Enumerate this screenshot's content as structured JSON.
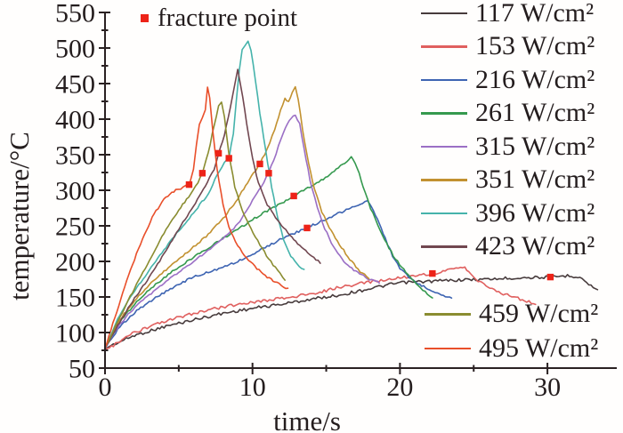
{
  "chart_data": {
    "type": "line",
    "title": "",
    "xlabel": "time/s",
    "ylabel": "temperature/°C",
    "xlim": [
      0,
      34.6
    ],
    "ylim": [
      50,
      550
    ],
    "xticks_major": [
      0,
      10,
      20,
      30
    ],
    "xticks_minor": [
      5,
      15,
      25
    ],
    "yticks_major": [
      50,
      100,
      150,
      200,
      250,
      300,
      350,
      400,
      450,
      500,
      550
    ],
    "yticks_minor": [
      75,
      125,
      175,
      225,
      275,
      325,
      375,
      425,
      475,
      525
    ],
    "grid": false,
    "legend_position": "right",
    "axis_color": "#2a2122",
    "fracture": {
      "label": "fracture point",
      "color": "#ed2318",
      "points": [
        [
          5.7,
          308
        ],
        [
          6.6,
          324
        ],
        [
          7.7,
          352
        ],
        [
          8.4,
          345
        ],
        [
          10.5,
          337
        ],
        [
          11.1,
          324
        ],
        [
          12.8,
          292
        ],
        [
          13.7,
          247
        ],
        [
          22.2,
          183
        ],
        [
          30.2,
          178
        ]
      ]
    },
    "series": [
      {
        "name": "117 W/cm²",
        "color": "#473b3c",
        "noise": 1.7,
        "points": [
          [
            0,
            78
          ],
          [
            2,
            96
          ],
          [
            4,
            108
          ],
          [
            6,
            118
          ],
          [
            8,
            127
          ],
          [
            10,
            134
          ],
          [
            12,
            140
          ],
          [
            14,
            147
          ],
          [
            16,
            153
          ],
          [
            18,
            162
          ],
          [
            20,
            170
          ],
          [
            22,
            172
          ],
          [
            24,
            174
          ],
          [
            26,
            175
          ],
          [
            28,
            177
          ],
          [
            30.2,
            178
          ],
          [
            31.5,
            180
          ],
          [
            32.2,
            178
          ],
          [
            32.8,
            168
          ],
          [
            33.4,
            159
          ]
        ]
      },
      {
        "name": "153 W/cm²",
        "color": "#e0605f",
        "noise": 1.7,
        "points": [
          [
            0,
            75
          ],
          [
            2,
            100
          ],
          [
            4,
            115
          ],
          [
            6,
            127
          ],
          [
            8,
            136
          ],
          [
            10,
            143
          ],
          [
            12,
            148
          ],
          [
            14,
            154
          ],
          [
            16,
            164
          ],
          [
            18,
            171
          ],
          [
            20,
            177
          ],
          [
            22.2,
            183
          ],
          [
            23.5,
            188
          ],
          [
            24.4,
            192
          ],
          [
            24.8,
            183
          ],
          [
            25.3,
            172
          ],
          [
            26.1,
            163
          ],
          [
            27,
            155
          ],
          [
            28,
            148
          ],
          [
            29.2,
            140
          ]
        ]
      },
      {
        "name": "216 W/cm²",
        "color": "#3e64b2",
        "noise": 1.2,
        "points": [
          [
            0,
            78
          ],
          [
            1,
            108
          ],
          [
            2,
            128
          ],
          [
            3,
            143
          ],
          [
            4,
            156
          ],
          [
            5,
            168
          ],
          [
            6,
            178
          ],
          [
            7,
            185
          ],
          [
            8,
            192
          ],
          [
            9,
            200
          ],
          [
            10,
            210
          ],
          [
            11,
            221
          ],
          [
            12,
            232
          ],
          [
            13,
            241
          ],
          [
            13.7,
            247
          ],
          [
            14.5,
            255
          ],
          [
            15.5,
            264
          ],
          [
            16.5,
            274
          ],
          [
            17.3,
            281
          ],
          [
            17.8,
            285
          ],
          [
            18.2,
            272
          ],
          [
            18.6,
            252
          ],
          [
            19,
            232
          ],
          [
            19.5,
            208
          ],
          [
            20,
            190
          ],
          [
            20.6,
            178
          ],
          [
            21.2,
            169
          ],
          [
            22,
            161
          ],
          [
            22.8,
            154
          ],
          [
            23.5,
            148
          ]
        ]
      },
      {
        "name": "261 W/cm²",
        "color": "#35994e",
        "noise": 1.2,
        "points": [
          [
            0,
            78
          ],
          [
            1,
            115
          ],
          [
            2,
            140
          ],
          [
            3,
            160
          ],
          [
            4,
            177
          ],
          [
            5,
            192
          ],
          [
            6,
            206
          ],
          [
            7,
            219
          ],
          [
            8,
            232
          ],
          [
            9,
            245
          ],
          [
            10,
            259
          ],
          [
            11,
            271
          ],
          [
            12,
            282
          ],
          [
            12.8,
            292
          ],
          [
            13.6,
            301
          ],
          [
            14.5,
            312
          ],
          [
            15.4,
            324
          ],
          [
            16.1,
            336
          ],
          [
            16.7,
            347
          ],
          [
            17.1,
            332
          ],
          [
            17.5,
            305
          ],
          [
            18,
            275
          ],
          [
            18.5,
            252
          ],
          [
            19.1,
            225
          ],
          [
            19.7,
            203
          ],
          [
            20.4,
            185
          ],
          [
            21.1,
            168
          ],
          [
            21.7,
            157
          ],
          [
            22.2,
            148
          ]
        ]
      },
      {
        "name": "315 W/cm²",
        "color": "#9b6fc5",
        "noise": 1.1,
        "points": [
          [
            0,
            78
          ],
          [
            1,
            112
          ],
          [
            2,
            135
          ],
          [
            3,
            153
          ],
          [
            4,
            170
          ],
          [
            5,
            185
          ],
          [
            6,
            200
          ],
          [
            7,
            215
          ],
          [
            8,
            232
          ],
          [
            9,
            252
          ],
          [
            10,
            285
          ],
          [
            10.6,
            305
          ],
          [
            11.1,
            324
          ],
          [
            11.6,
            352
          ],
          [
            12.1,
            382
          ],
          [
            12.5,
            398
          ],
          [
            12.9,
            406
          ],
          [
            13.2,
            393
          ],
          [
            13.5,
            358
          ],
          [
            13.9,
            315
          ],
          [
            14.4,
            275
          ],
          [
            14.9,
            246
          ],
          [
            15.5,
            220
          ],
          [
            16.2,
            200
          ],
          [
            17,
            186
          ],
          [
            17.8,
            176
          ],
          [
            18.6,
            170
          ]
        ]
      },
      {
        "name": "351 W/cm²",
        "color": "#c29130",
        "noise": 1.1,
        "points": [
          [
            0,
            78
          ],
          [
            1,
            118
          ],
          [
            2,
            145
          ],
          [
            3,
            167
          ],
          [
            4,
            186
          ],
          [
            5,
            203
          ],
          [
            6,
            220
          ],
          [
            7,
            238
          ],
          [
            8,
            260
          ],
          [
            9,
            288
          ],
          [
            9.8,
            315
          ],
          [
            10.5,
            337
          ],
          [
            11,
            358
          ],
          [
            11.5,
            385
          ],
          [
            11.9,
            412
          ],
          [
            12.2,
            430
          ],
          [
            12.45,
            424
          ],
          [
            12.7,
            437
          ],
          [
            12.9,
            445
          ],
          [
            13.1,
            428
          ],
          [
            13.4,
            385
          ],
          [
            13.8,
            338
          ],
          [
            14.2,
            302
          ],
          [
            14.7,
            270
          ],
          [
            15.2,
            248
          ],
          [
            15.9,
            224
          ],
          [
            16.6,
            203
          ],
          [
            17.3,
            186
          ],
          [
            17.9,
            176
          ]
        ]
      },
      {
        "name": "396 W/cm²",
        "color": "#45b3ab",
        "noise": 1.1,
        "points": [
          [
            0,
            78
          ],
          [
            1,
            125
          ],
          [
            2,
            158
          ],
          [
            3,
            188
          ],
          [
            4,
            216
          ],
          [
            5,
            243
          ],
          [
            6,
            268
          ],
          [
            7,
            295
          ],
          [
            7.6,
            322
          ],
          [
            8.1,
            340
          ],
          [
            8.4,
            345
          ],
          [
            8.7,
            380
          ],
          [
            8.9,
            425
          ],
          [
            9.1,
            468
          ],
          [
            9.3,
            497
          ],
          [
            9.5,
            503
          ],
          [
            9.7,
            510
          ],
          [
            9.9,
            498
          ],
          [
            10.2,
            455
          ],
          [
            10.5,
            408
          ],
          [
            10.9,
            355
          ],
          [
            11.3,
            305
          ],
          [
            11.7,
            262
          ],
          [
            12.1,
            232
          ],
          [
            12.6,
            208
          ],
          [
            13,
            196
          ],
          [
            13.5,
            188
          ]
        ]
      },
      {
        "name": "423 W/cm²",
        "color": "#714750",
        "noise": 1.1,
        "points": [
          [
            0,
            78
          ],
          [
            1,
            115
          ],
          [
            2,
            148
          ],
          [
            3,
            178
          ],
          [
            4,
            210
          ],
          [
            5,
            245
          ],
          [
            6,
            278
          ],
          [
            6.8,
            305
          ],
          [
            7.4,
            330
          ],
          [
            7.7,
            352
          ],
          [
            8.1,
            378
          ],
          [
            8.5,
            415
          ],
          [
            8.8,
            448
          ],
          [
            9,
            470
          ],
          [
            9.2,
            448
          ],
          [
            9.6,
            395
          ],
          [
            10,
            345
          ],
          [
            10.4,
            310
          ],
          [
            11,
            280
          ],
          [
            11.7,
            258
          ],
          [
            12.4,
            240
          ],
          [
            13.2,
            222
          ],
          [
            14,
            208
          ],
          [
            14.6,
            198
          ]
        ]
      },
      {
        "name": "459 W/cm²",
        "color": "#8a8c30",
        "noise": 1.1,
        "points": [
          [
            0,
            78
          ],
          [
            1,
            122
          ],
          [
            2,
            162
          ],
          [
            3,
            200
          ],
          [
            4,
            240
          ],
          [
            5,
            272
          ],
          [
            5.8,
            295
          ],
          [
            6.3,
            310
          ],
          [
            6.6,
            324
          ],
          [
            7,
            352
          ],
          [
            7.4,
            392
          ],
          [
            7.7,
            418
          ],
          [
            7.9,
            425
          ],
          [
            8.1,
            402
          ],
          [
            8.4,
            352
          ],
          [
            8.8,
            305
          ],
          [
            9.3,
            272
          ],
          [
            9.9,
            246
          ],
          [
            10.5,
            224
          ],
          [
            11.1,
            203
          ],
          [
            11.7,
            188
          ],
          [
            12.2,
            174
          ]
        ]
      },
      {
        "name": "495 W/cm²",
        "color": "#e94f2a",
        "noise": 1.1,
        "points": [
          [
            0,
            78
          ],
          [
            0.8,
            130
          ],
          [
            1.6,
            180
          ],
          [
            2.4,
            225
          ],
          [
            3.2,
            262
          ],
          [
            4,
            288
          ],
          [
            4.8,
            300
          ],
          [
            5.3,
            304
          ],
          [
            5.7,
            308
          ],
          [
            6,
            330
          ],
          [
            6.2,
            365
          ],
          [
            6.4,
            392
          ],
          [
            6.6,
            403
          ],
          [
            6.8,
            412
          ],
          [
            6.95,
            445
          ],
          [
            7.1,
            430
          ],
          [
            7.3,
            385
          ],
          [
            7.6,
            330
          ],
          [
            8,
            280
          ],
          [
            8.4,
            248
          ],
          [
            9,
            222
          ],
          [
            9.6,
            204
          ],
          [
            10.3,
            190
          ],
          [
            11,
            178
          ],
          [
            11.8,
            168
          ],
          [
            12.4,
            161
          ]
        ]
      }
    ]
  }
}
